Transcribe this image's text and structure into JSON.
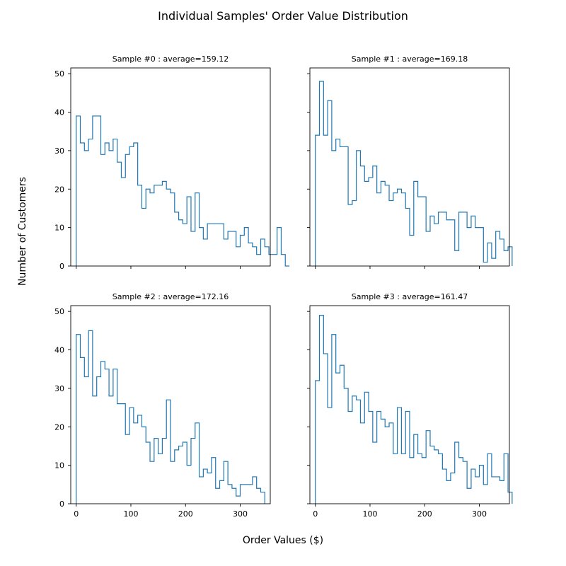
{
  "figure": {
    "title": "Individual Samples' Order Value Distribution",
    "xlabel": "Order Values ($)",
    "ylabel": "Number of Customers"
  },
  "chart_data": [
    {
      "type": "histogram",
      "title": "Sample #0 : average=159.12",
      "bin_start": 0,
      "bin_width": 7.5,
      "counts": [
        39,
        32,
        30,
        33,
        39,
        39,
        29,
        32,
        30,
        33,
        27,
        23,
        29,
        31,
        32,
        21,
        15,
        20,
        19,
        21,
        21,
        22,
        20,
        19,
        14,
        12,
        11,
        18,
        9,
        19,
        10,
        7,
        11,
        11,
        11,
        11,
        7,
        9,
        9,
        5,
        8,
        10,
        6,
        5,
        3,
        7,
        5,
        3,
        3,
        10,
        3,
        0
      ],
      "xlim": [
        -10,
        355
      ],
      "ylim": [
        0,
        51.5
      ],
      "xticks": [
        0,
        100,
        200,
        300
      ],
      "yticks": [
        0,
        10,
        20,
        30,
        40,
        50
      ],
      "show_xticklabels": false,
      "show_yticklabels": true
    },
    {
      "type": "histogram",
      "title": "Sample #1 : average=169.18",
      "bin_start": 0,
      "bin_width": 7.5,
      "counts": [
        34,
        48,
        34,
        43,
        30,
        33,
        31,
        31,
        16,
        17,
        30,
        26,
        22,
        23,
        26,
        19,
        22,
        21,
        17,
        19,
        20,
        19,
        15,
        8,
        22,
        18,
        18,
        9,
        13,
        11,
        14,
        14,
        12,
        12,
        4,
        14,
        14,
        10,
        13,
        10,
        10,
        1,
        6,
        2,
        9,
        7,
        4,
        5
      ],
      "xlim": [
        -10,
        355
      ],
      "ylim": [
        0,
        51.5
      ],
      "xticks": [
        0,
        100,
        200,
        300
      ],
      "yticks": [
        0,
        10,
        20,
        30,
        40,
        50
      ],
      "show_xticklabels": false,
      "show_yticklabels": false
    },
    {
      "type": "histogram",
      "title": "Sample #2 : average=172.16",
      "bin_start": 0,
      "bin_width": 7.5,
      "counts": [
        44,
        38,
        33,
        45,
        28,
        33,
        37,
        35,
        28,
        35,
        26,
        26,
        18,
        25,
        21,
        23,
        20,
        16,
        11,
        17,
        13,
        17,
        27,
        11,
        14,
        15,
        16,
        10,
        17,
        21,
        7,
        9,
        8,
        12,
        4,
        6,
        11,
        5,
        4,
        2,
        5,
        5,
        5,
        7,
        4,
        3
      ],
      "xlim": [
        -10,
        355
      ],
      "ylim": [
        0,
        51.5
      ],
      "xticks": [
        0,
        100,
        200,
        300
      ],
      "yticks": [
        0,
        10,
        20,
        30,
        40,
        50
      ],
      "show_xticklabels": true,
      "show_yticklabels": true
    },
    {
      "type": "histogram",
      "title": "Sample #3 : average=161.47",
      "bin_start": 0,
      "bin_width": 7.5,
      "counts": [
        32,
        49,
        39,
        25,
        44,
        34,
        36,
        30,
        24,
        28,
        27,
        21,
        29,
        24,
        16,
        24,
        22,
        20,
        21,
        13,
        25,
        13,
        24,
        12,
        18,
        13,
        12,
        19,
        15,
        14,
        13,
        9,
        6,
        8,
        16,
        12,
        11,
        4,
        9,
        7,
        10,
        5,
        13,
        7,
        7,
        6,
        13,
        3
      ],
      "xlim": [
        -10,
        355
      ],
      "ylim": [
        0,
        51.5
      ],
      "xticks": [
        0,
        100,
        200,
        300
      ],
      "yticks": [
        0,
        10,
        20,
        30,
        40,
        50
      ],
      "show_xticklabels": true,
      "show_yticklabels": false
    }
  ]
}
